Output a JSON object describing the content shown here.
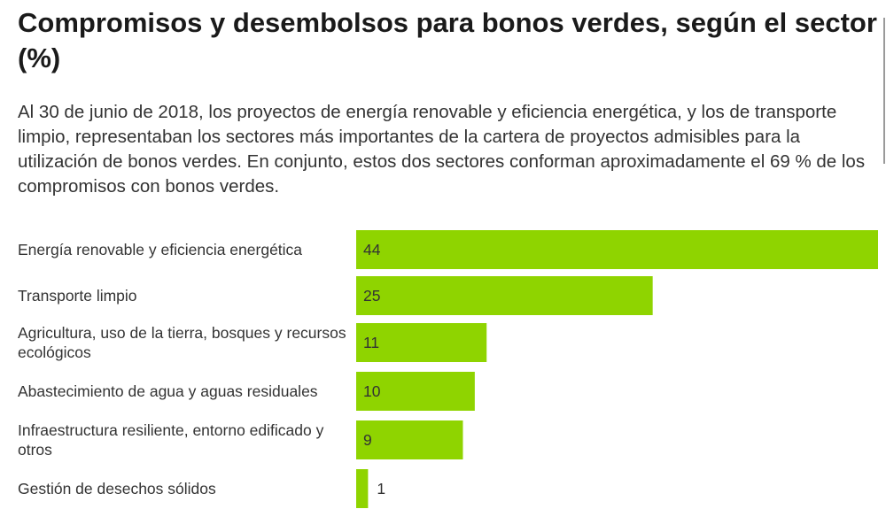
{
  "header": {
    "title": "Compromisos y desembolsos para bonos verdes, según el sector (%)",
    "subtitle": "Al 30 de junio de 2018, los proyectos de energía renovable y eficiencia energética, y los de transporte limpio, representaban los sectores más importantes de la cartera de proyectos admisibles para la utilización de bonos verdes. En conjunto, estos dos sectores conforman aproximadamente el 69 % de los compromisos con bonos verdes."
  },
  "chart_data": {
    "type": "bar",
    "orientation": "horizontal",
    "title": "Compromisos y desembolsos para bonos verdes, según el sector (%)",
    "categories": [
      "Energía renovable y eficiencia energética",
      "Transporte limpio",
      "Agricultura, uso de la tierra, bosques y recursos ecológicos",
      "Abastecimiento de agua y aguas residuales",
      "Infraestructura resiliente, entorno edificado y otros",
      "Gestión de desechos sólidos"
    ],
    "values": [
      44,
      25,
      11,
      10,
      9,
      1
    ],
    "xlim": [
      0,
      44
    ],
    "xlabel": "",
    "ylabel": "",
    "grid": false,
    "legend": "none",
    "bar_color": "#8fd400"
  }
}
